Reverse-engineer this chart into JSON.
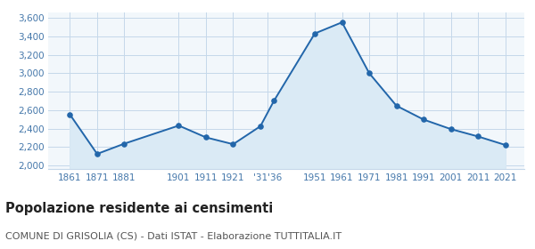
{
  "years": [
    1861,
    1871,
    1881,
    1901,
    1911,
    1921,
    1931,
    1936,
    1951,
    1961,
    1971,
    1981,
    1991,
    2001,
    2011,
    2021
  ],
  "population": [
    2554,
    2127,
    2238,
    2434,
    2306,
    2232,
    2427,
    2703,
    3432,
    3553,
    3002,
    2649,
    2499,
    2396,
    2316,
    2224
  ],
  "yticks": [
    2000,
    2200,
    2400,
    2600,
    2800,
    3000,
    3200,
    3400,
    3600
  ],
  "ylim": [
    1960,
    3660
  ],
  "xlim": [
    1853,
    2028
  ],
  "line_color": "#2266aa",
  "fill_color": "#daeaf5",
  "marker_color": "#2266aa",
  "grid_color": "#c5d8ea",
  "bg_color": "#f2f7fb",
  "title": "Popolazione residente ai censimenti",
  "title_fontsize": 10.5,
  "subtitle": "COMUNE DI GRISOLIA (CS) - Dati ISTAT - Elaborazione TUTTITALIA.IT",
  "subtitle_fontsize": 8,
  "axis_label_color": "#4477aa",
  "tick_fontsize": 7.5
}
